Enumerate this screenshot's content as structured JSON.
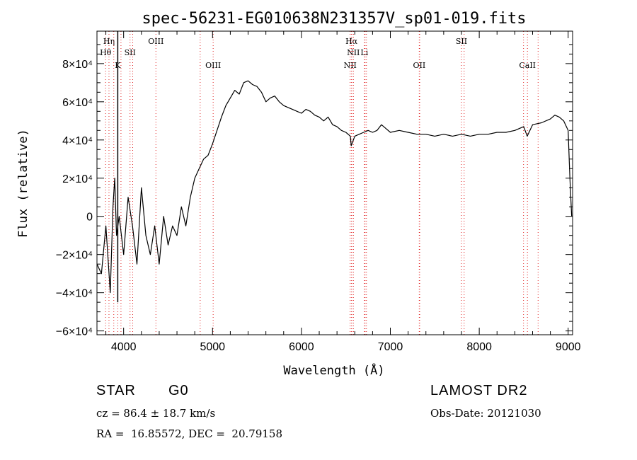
{
  "chart_data": {
    "type": "line",
    "title": "spec-56231-EG010638N231357V_sp01-019.fits",
    "xlabel": "Wavelength (Å)",
    "ylabel": "Flux (relative)",
    "xlim": [
      3700,
      9050
    ],
    "ylim": [
      -62000,
      97000
    ],
    "x_ticks": [
      4000,
      5000,
      6000,
      7000,
      8000,
      9000
    ],
    "y_ticks": [
      {
        "value": -60000,
        "label": "−6×10⁴"
      },
      {
        "value": -40000,
        "label": "−4×10⁴"
      },
      {
        "value": -20000,
        "label": "−2×10⁴"
      },
      {
        "value": 0,
        "label": "0"
      },
      {
        "value": 20000,
        "label": "2×10⁴"
      },
      {
        "value": 40000,
        "label": "4×10⁴"
      },
      {
        "value": 60000,
        "label": "6×10⁴"
      },
      {
        "value": 80000,
        "label": "8×10⁴"
      }
    ],
    "series": [
      {
        "x": [
          3700,
          3750,
          3800,
          3850,
          3880,
          3900,
          3920,
          3950,
          4000,
          4050,
          4100,
          4150,
          4200,
          4250,
          4300,
          4350,
          4400,
          4450,
          4500,
          4550,
          4600,
          4650,
          4700,
          4750,
          4800,
          4850,
          4900,
          4950,
          5000,
          5050,
          5100,
          5150,
          5200,
          5250,
          5300,
          5350,
          5400,
          5450,
          5500,
          5550,
          5600,
          5650,
          5700,
          5750,
          5800,
          5850,
          5900,
          5950,
          6000,
          6050,
          6100,
          6150,
          6200,
          6250,
          6300,
          6350,
          6400,
          6450,
          6500,
          6550,
          6560,
          6600,
          6650,
          6700,
          6750,
          6800,
          6850,
          6900,
          6950,
          7000,
          7100,
          7200,
          7300,
          7400,
          7500,
          7600,
          7700,
          7800,
          7900,
          8000,
          8100,
          8200,
          8300,
          8400,
          8500,
          8540,
          8600,
          8700,
          8800,
          8850,
          8900,
          8950,
          9000,
          9020,
          9040
        ],
        "y": [
          -25000,
          -30000,
          -5000,
          -40000,
          5000,
          20000,
          -10000,
          0,
          -20000,
          10000,
          -5000,
          -25000,
          15000,
          -10000,
          -20000,
          -5000,
          -25000,
          0,
          -15000,
          -5000,
          -10000,
          5000,
          -5000,
          10000,
          20000,
          25000,
          30000,
          32000,
          38000,
          45000,
          52000,
          58000,
          62000,
          66000,
          64000,
          70000,
          71000,
          69000,
          68000,
          65000,
          60000,
          62000,
          63000,
          60000,
          58000,
          57000,
          56000,
          55000,
          54000,
          56000,
          55000,
          53000,
          52000,
          50000,
          52000,
          48000,
          47000,
          45000,
          44000,
          42000,
          37000,
          42000,
          43000,
          44000,
          45000,
          44000,
          45000,
          48000,
          46000,
          44000,
          45000,
          44000,
          43000,
          43000,
          42000,
          43000,
          42000,
          43000,
          42000,
          43000,
          43000,
          44000,
          44000,
          45000,
          47000,
          42000,
          48000,
          49000,
          51000,
          53000,
          52000,
          50000,
          45000,
          20000,
          0
        ]
      }
    ],
    "lines": [
      {
        "label": "Hη",
        "x": 3835,
        "row": 1
      },
      {
        "label": "Hθ",
        "x": 3797,
        "row": 2
      },
      {
        "label": "K",
        "x": 3934,
        "row": 3
      },
      {
        "label": "SII",
        "x": 4072,
        "row": 2
      },
      {
        "label": "OIII",
        "x": 4363,
        "row": 1
      },
      {
        "label": "OIII",
        "x": 5007,
        "row": 3
      },
      {
        "label": "Hα",
        "x": 6563,
        "row": 1
      },
      {
        "label": "NII",
        "x": 6584,
        "row": 2
      },
      {
        "label": "Li",
        "x": 6708,
        "row": 2
      },
      {
        "label": "NII",
        "x": 6548,
        "row": 3
      },
      {
        "label": "OII",
        "x": 7325,
        "row": 3
      },
      {
        "label": "SII",
        "x": 7800,
        "row": 1
      },
      {
        "label": "CaII",
        "x": 8542,
        "row": 3
      }
    ],
    "extra_lines_x": [
      3889,
      3970,
      4102,
      4861,
      6583,
      6716,
      6731,
      7330,
      7830,
      8498,
      8662
    ],
    "grid": false,
    "line_color": "#000000",
    "marker_color": "#e02020"
  },
  "info": {
    "class": "STAR",
    "subclass": "G0",
    "survey": "LAMOST DR2",
    "cz": "cz = 86.4 ± 18.7 km/s",
    "obs_date": "Obs-Date: 20121030",
    "radec": "RA =  16.85572, DEC =  20.79158"
  }
}
